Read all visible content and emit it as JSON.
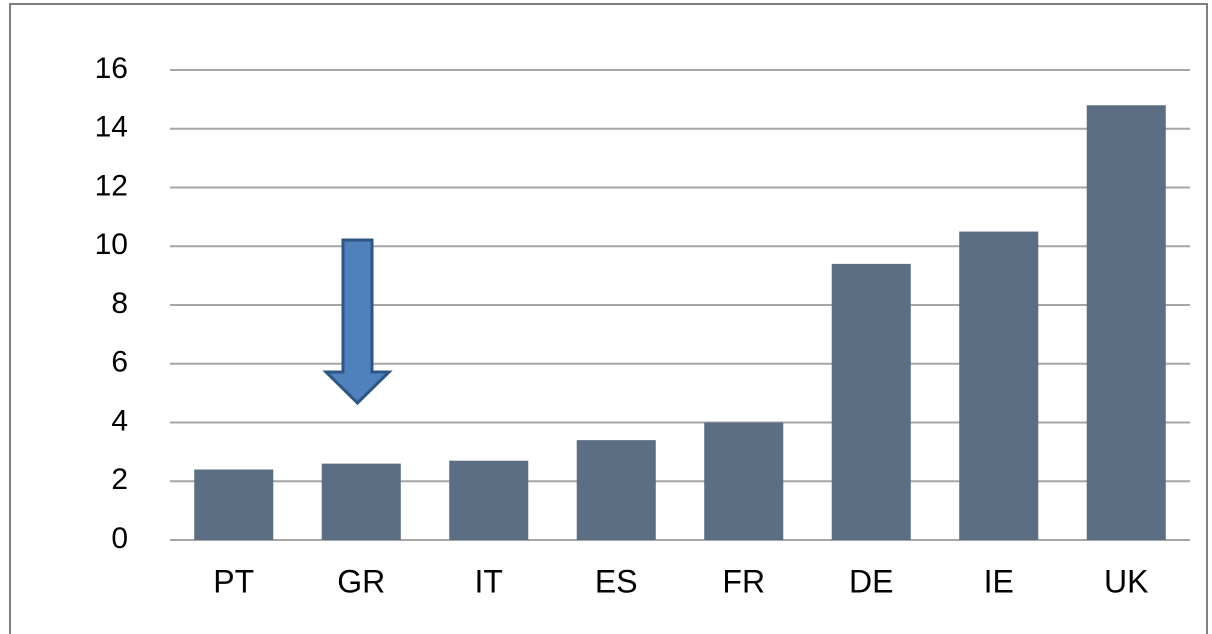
{
  "chart_data": {
    "type": "bar",
    "categories": [
      "PT",
      "GR",
      "IT",
      "ES",
      "FR",
      "DE",
      "IE",
      "UK"
    ],
    "values": [
      2.4,
      2.6,
      2.7,
      3.4,
      4.0,
      9.4,
      10.5,
      14.8
    ],
    "color": "#5b6e84",
    "ylim": [
      0,
      16
    ],
    "yticks": [
      0,
      2,
      4,
      6,
      8,
      10,
      12,
      14,
      16
    ],
    "grid": true
  }
}
